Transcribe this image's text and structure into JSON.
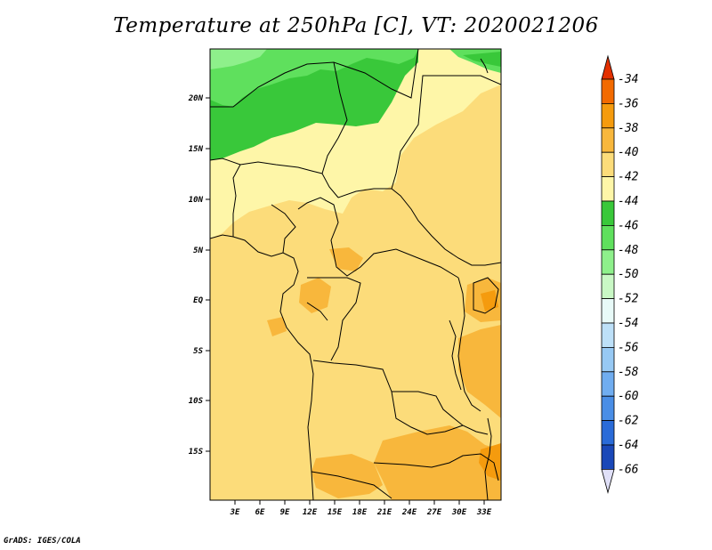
{
  "title": "Temperature at 250hPa [C], VT: 2020021206",
  "footer": "GrADS: IGES/COLA",
  "map": {
    "lon_ticks": [
      "3E",
      "6E",
      "9E",
      "12E",
      "15E",
      "18E",
      "21E",
      "24E",
      "27E",
      "30E",
      "33E"
    ],
    "lat_ticks": [
      "20N",
      "15N",
      "10N",
      "5N",
      "EQ",
      "5S",
      "10S",
      "15S"
    ]
  },
  "colorbar": {
    "levels": [
      "-34",
      "-36",
      "-38",
      "-40",
      "-42",
      "-44",
      "-46",
      "-48",
      "-50",
      "-52",
      "-54",
      "-56",
      "-58",
      "-60",
      "-62",
      "-64",
      "-66"
    ],
    "colors": [
      "#e33000",
      "#f26a00",
      "#f59b0e",
      "#f8b73c",
      "#fcdc7a",
      "#fef6a8",
      "#39c83a",
      "#5fe05d",
      "#8ef08b",
      "#c9f8c5",
      "#e8faf8",
      "#bde0f8",
      "#97c9f4",
      "#70adf0",
      "#4a8ee6",
      "#2a6bd8",
      "#1a48b8",
      "#0a1e70"
    ],
    "top_arrow_color": "#e33000",
    "bottom_arrow_color": "#e0e0f8"
  },
  "chart_data": {
    "type": "heatmap",
    "variable": "Temperature at 250hPa",
    "units": "C",
    "valid_time": "2020021206",
    "lon_ticks_deg_east": [
      3,
      6,
      9,
      12,
      15,
      18,
      21,
      24,
      27,
      30,
      33
    ],
    "lat_ticks_deg": [
      20,
      15,
      10,
      5,
      0,
      -5,
      -10,
      -15
    ],
    "contour_levels": [
      -34,
      -36,
      -38,
      -40,
      -42,
      -44,
      -46,
      -48,
      -50,
      -52,
      -54,
      -56,
      -58,
      -60,
      -62,
      -64,
      -66
    ]
  }
}
